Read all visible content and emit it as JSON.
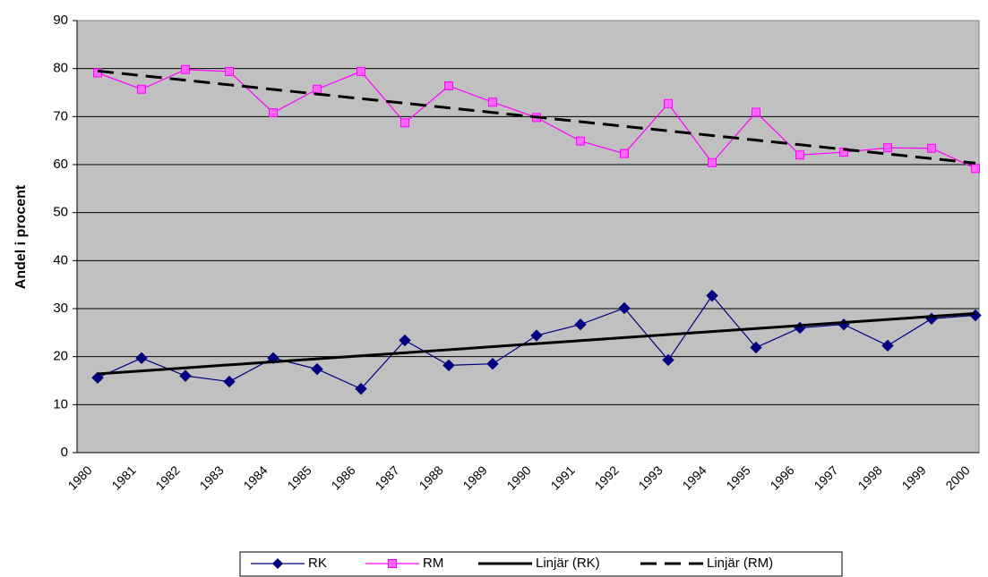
{
  "chart_data": {
    "type": "line",
    "ylabel": "Andel i procent",
    "categories": [
      "1980",
      "1981",
      "1982",
      "1983",
      "1984",
      "1985",
      "1986",
      "1987",
      "1988",
      "1989",
      "1990",
      "1991",
      "1992",
      "1993",
      "1994",
      "1995",
      "1996",
      "1997",
      "1998",
      "1999",
      "2000"
    ],
    "series": [
      {
        "name": "RK",
        "color": "#000080",
        "marker": "diamond",
        "dash": false,
        "values": [
          15.6,
          19.7,
          16.0,
          14.8,
          19.7,
          17.4,
          13.3,
          23.4,
          18.2,
          18.5,
          24.4,
          26.7,
          30.1,
          19.3,
          32.7,
          21.9,
          26.0,
          26.7,
          22.3,
          27.9,
          28.6
        ]
      },
      {
        "name": "RM",
        "color": "#ff00ff",
        "marker": "square",
        "dash": false,
        "values": [
          79.1,
          75.7,
          79.8,
          79.4,
          70.8,
          75.7,
          79.4,
          68.7,
          76.4,
          73.0,
          69.8,
          64.9,
          62.3,
          72.7,
          60.4,
          70.9,
          62.0,
          62.6,
          63.5,
          63.4,
          59.2
        ]
      },
      {
        "name": "Linjär (RK)",
        "color": "#000000",
        "marker": "none",
        "dash": false,
        "values": [
          16.4,
          17.03,
          17.66,
          18.29,
          18.92,
          19.55,
          20.18,
          20.81,
          21.44,
          22.07,
          22.7,
          23.33,
          23.96,
          24.59,
          25.22,
          25.85,
          26.48,
          27.11,
          27.74,
          28.37,
          29.0
        ]
      },
      {
        "name": "Linjär (RM)",
        "color": "#000000",
        "marker": "none",
        "dash": true,
        "values": [
          79.5,
          78.54,
          77.58,
          76.62,
          75.66,
          74.7,
          73.74,
          72.78,
          71.82,
          70.86,
          69.9,
          68.94,
          67.98,
          67.02,
          66.06,
          65.1,
          64.14,
          63.18,
          62.22,
          61.26,
          60.3
        ]
      }
    ],
    "ylim": [
      0,
      90
    ],
    "yticks": [
      0,
      10,
      20,
      30,
      40,
      50,
      60,
      70,
      80,
      90
    ],
    "grid": true,
    "legend": "bottom"
  }
}
